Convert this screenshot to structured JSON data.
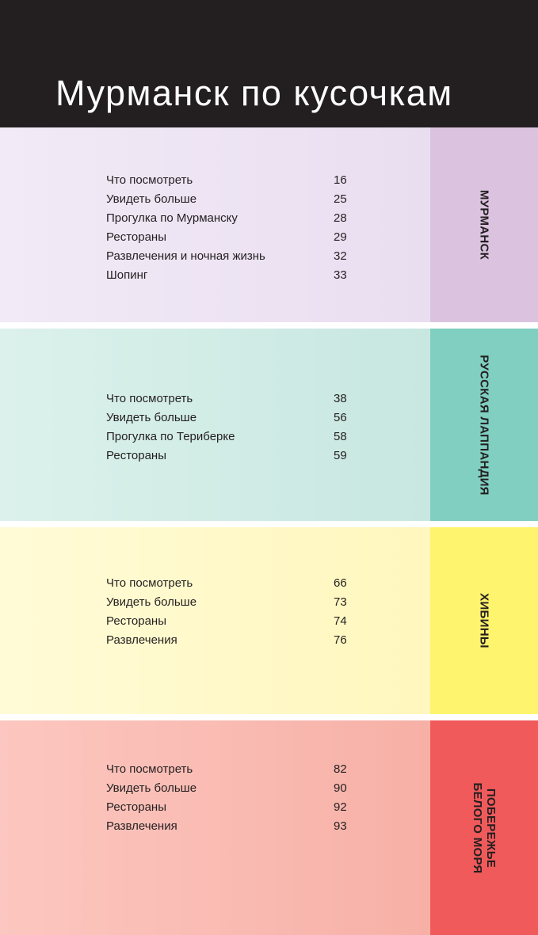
{
  "title": "Мурманск по кусочкам",
  "sections": [
    {
      "tab": "МУРМАНСК",
      "items": [
        {
          "label": "Что посмотреть",
          "page": "16"
        },
        {
          "label": "Увидеть больше",
          "page": "25"
        },
        {
          "label": "Прогулка по Мурманску",
          "page": "28"
        },
        {
          "label": "Рестораны",
          "page": "29"
        },
        {
          "label": "Развлечения и ночная жизнь",
          "page": "32"
        },
        {
          "label": "Шопинг",
          "page": "33"
        }
      ]
    },
    {
      "tab": "РУССКАЯ ЛАППАНДИЯ",
      "items": [
        {
          "label": "Что посмотреть",
          "page": "38"
        },
        {
          "label": "Увидеть больше",
          "page": "56"
        },
        {
          "label": "Прогулка по Териберке",
          "page": "58"
        },
        {
          "label": "Рестораны",
          "page": "59"
        }
      ]
    },
    {
      "tab": "ХИБИНЫ",
      "items": [
        {
          "label": "Что посмотреть",
          "page": "66"
        },
        {
          "label": "Увидеть больше",
          "page": "73"
        },
        {
          "label": "Рестораны",
          "page": "74"
        },
        {
          "label": "Развлечения",
          "page": "76"
        }
      ]
    },
    {
      "tab": "ПОБЕРЕЖЬЕ\nБЕЛОГО МОРЯ",
      "items": [
        {
          "label": "Что посмотреть",
          "page": "82"
        },
        {
          "label": "Увидеть больше",
          "page": "90"
        },
        {
          "label": "Рестораны",
          "page": "92"
        },
        {
          "label": "Развлечения",
          "page": "93"
        }
      ]
    }
  ],
  "colors": {
    "header_bg": "#231f20",
    "murmansk_tab": "#dbc3e0",
    "lapland_tab": "#80cfc1",
    "khibiny_tab": "#fff46d",
    "white_sea_tab": "#f05a5b"
  }
}
